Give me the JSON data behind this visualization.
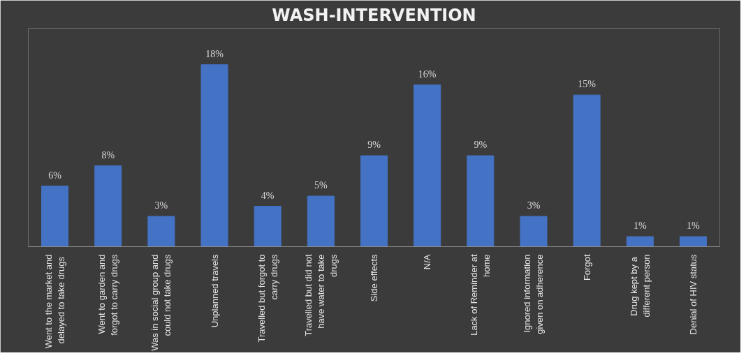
{
  "chart_data": {
    "type": "bar",
    "title": "WASH-INTERVENTION",
    "categories": [
      "Went to the market and delayed to  take drugs",
      "Went to garden and forgot to carry drugs",
      "Was in social group and could not take drugs",
      "Unplanned travels",
      "Travelled but forgot to carry drugs",
      "Travelled but did not have water to take drugs",
      "Side effects",
      "N/A",
      "Lack of Reminder at home",
      "Ignored information given on adherence",
      "Forgot",
      "Drug kept  by a different person",
      "Denial of HIV status"
    ],
    "values": [
      6,
      8,
      3,
      18,
      4,
      5,
      9,
      16,
      9,
      3,
      15,
      1,
      1
    ],
    "value_labels": [
      "6%",
      "8%",
      "3%",
      "18%",
      "4%",
      "5%",
      "9%",
      "16%",
      "9%",
      "3%",
      "15%",
      "1%",
      "1%"
    ],
    "color": "#4472c4",
    "grid": false
  }
}
